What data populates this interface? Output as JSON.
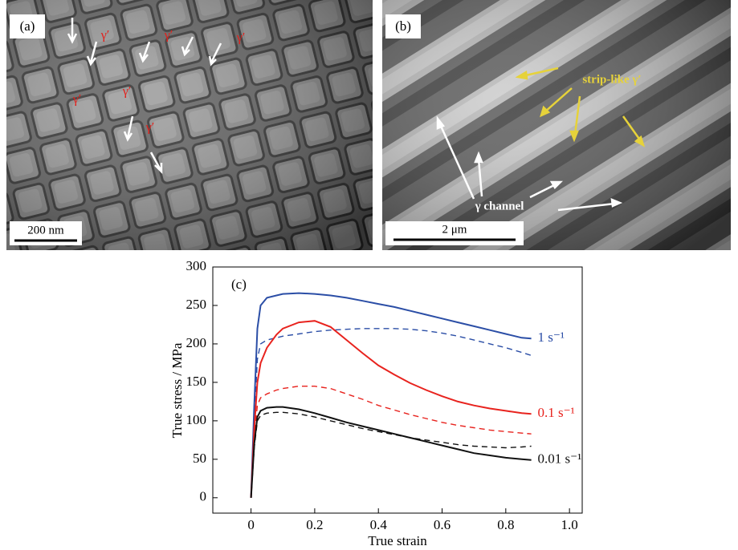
{
  "panel_a": {
    "label": "(a)",
    "labels": [
      "γ′",
      "γ′",
      "γ′",
      "γ′",
      "γ′",
      "γ′"
    ],
    "scale_bar": "200 nm"
  },
  "panel_b": {
    "label": "(b)",
    "phase_label": "strip-like γ′",
    "channel_label": "γ channel",
    "scale_bar": "2 μm"
  },
  "chart_data": {
    "type": "line",
    "panel_label": "(c)",
    "x_label": "True strain",
    "y_label": "True stress / MPa",
    "x": [
      0,
      0.01,
      0.02,
      0.03,
      0.05,
      0.08,
      0.1,
      0.15,
      0.2,
      0.25,
      0.3,
      0.35,
      0.4,
      0.45,
      0.5,
      0.55,
      0.6,
      0.65,
      0.7,
      0.75,
      0.8,
      0.85,
      0.88
    ],
    "series": [
      {
        "name": "1 s⁻¹",
        "color": "#2b4ea6",
        "values": [
          0,
          120,
          220,
          250,
          260,
          263,
          265,
          266,
          265,
          263,
          260,
          256,
          252,
          248,
          243,
          238,
          233,
          228,
          223,
          218,
          213,
          208,
          207
        ]
      },
      {
        "color": "#2b4ea6",
        "dashed": true,
        "values": [
          0,
          100,
          180,
          200,
          205,
          208,
          210,
          213,
          216,
          218,
          219,
          220,
          220,
          220,
          219,
          217,
          214,
          210,
          205,
          200,
          195,
          189,
          185
        ]
      },
      {
        "name": "0.1 s⁻¹",
        "color": "#e8231e",
        "values": [
          0,
          90,
          150,
          175,
          195,
          212,
          220,
          228,
          230,
          222,
          205,
          188,
          172,
          160,
          149,
          140,
          132,
          125,
          120,
          116,
          113,
          110,
          109
        ]
      },
      {
        "color": "#e8231e",
        "dashed": true,
        "values": [
          0,
          80,
          120,
          130,
          135,
          140,
          142,
          145,
          145,
          142,
          135,
          128,
          120,
          114,
          108,
          103,
          98,
          94,
          91,
          88,
          86,
          84,
          83
        ]
      },
      {
        "name": "0.01 s⁻¹",
        "color": "#111111",
        "values": [
          0,
          70,
          105,
          113,
          117,
          118,
          118,
          115,
          110,
          104,
          98,
          93,
          88,
          83,
          78,
          73,
          68,
          63,
          58,
          55,
          52,
          50,
          49
        ]
      },
      {
        "color": "#111111",
        "dashed": true,
        "values": [
          0,
          65,
          100,
          107,
          110,
          111,
          111,
          109,
          105,
          100,
          95,
          90,
          86,
          82,
          78,
          75,
          72,
          69,
          67,
          66,
          65,
          66,
          67
        ]
      }
    ],
    "xlim": [
      -0.12,
      1.04
    ],
    "ylim": [
      -20,
      300
    ],
    "xticks": [
      0,
      0.2,
      0.4,
      0.6,
      0.8,
      {
        "value": 1,
        "label": "1.0"
      }
    ],
    "yticks": [
      0,
      50,
      100,
      150,
      200,
      250,
      300
    ],
    "grid": false
  }
}
